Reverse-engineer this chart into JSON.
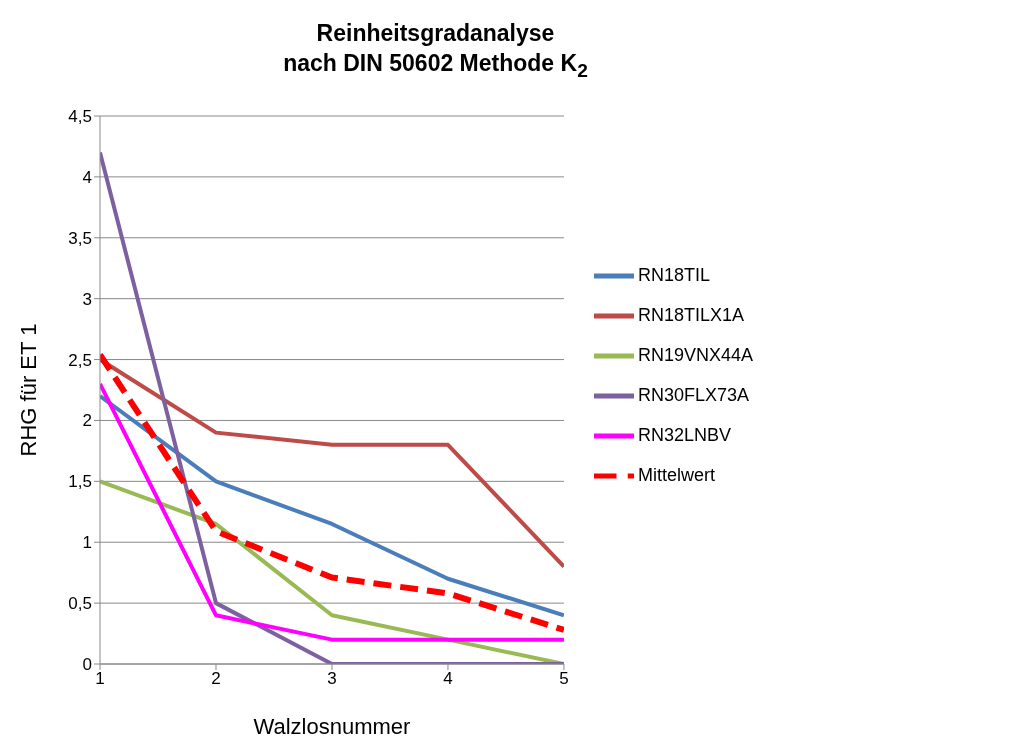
{
  "chart_data": {
    "type": "line",
    "title": "Reinheitsgradanalyse\nnach DIN 50602 Methode K$_{2}$",
    "xlabel": "Walzlosnummer",
    "ylabel": "RHG für ET 1",
    "x": [
      1,
      2,
      3,
      4,
      5
    ],
    "xlim": [
      1,
      5
    ],
    "xticks": [
      1,
      2,
      3,
      4,
      5
    ],
    "ylim": [
      0,
      4.5
    ],
    "yticks": [
      0,
      {
        "value": 0.5,
        "label": "0,5"
      },
      1,
      {
        "value": 1.5,
        "label": "1,5"
      },
      2,
      {
        "value": 2.5,
        "label": "2,5"
      },
      3,
      {
        "value": 3.5,
        "label": "3,5"
      },
      4,
      {
        "value": 4.5,
        "label": "4,5"
      }
    ],
    "grid": "y",
    "legend": "right",
    "marker": "none",
    "series": [
      {
        "name": "RN18TIL",
        "color": "#4a7ebb",
        "values": [
          2.2,
          1.5,
          1.15,
          0.7,
          0.4
        ]
      },
      {
        "name": "RN18TILX1A",
        "color": "#be4b48",
        "values": [
          2.5,
          1.9,
          1.8,
          1.8,
          0.8
        ]
      },
      {
        "name": "RN19VNX44A",
        "color": "#98b954",
        "values": [
          1.5,
          1.15,
          0.4,
          0.2,
          0
        ]
      },
      {
        "name": "RN30FLX73A",
        "color": "#7d60a0",
        "values": [
          4.2,
          0.5,
          0,
          0,
          0
        ]
      },
      {
        "name": "RN32LNBV",
        "color": "#ff00ff",
        "values": [
          2.3,
          0.4,
          0.2,
          0.2,
          0.2
        ]
      },
      {
        "name": "Mittelwert",
        "color": "#ff0000",
        "values": [
          2.54,
          1.09,
          0.71,
          0.58,
          0.28
        ],
        "line_style": "dashed"
      }
    ]
  }
}
